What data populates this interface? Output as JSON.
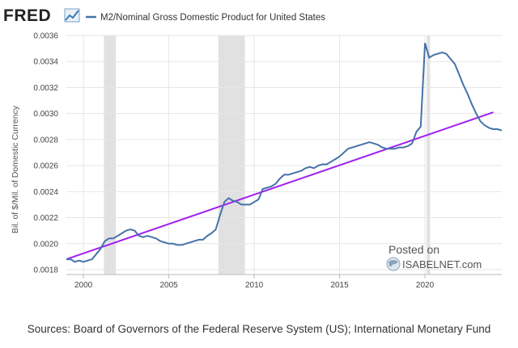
{
  "header": {
    "logo_text": "FRED"
  },
  "watermark": {
    "line1": "Posted on",
    "line2": "ISABELNET.com"
  },
  "sources": "Sources: Board of Governors of the Federal Reserve System (US); International Monetary Fund",
  "colors": {
    "series": "#4572a7",
    "trend": "#a020f0",
    "recession": "#e1e1e1",
    "grid": "#e6e6e6"
  },
  "chart_data": {
    "type": "line",
    "title": "",
    "ylabel": "Bil. of $/Mil. of Domestic Currency",
    "xlabel": "",
    "xlim": [
      1999.0,
      2024.5
    ],
    "ylim": [
      0.0018,
      0.0036
    ],
    "x_ticks": [
      "2000",
      "2005",
      "2010",
      "2015",
      "2020"
    ],
    "y_ticks": [
      "0.0018",
      "0.0020",
      "0.0022",
      "0.0024",
      "0.0026",
      "0.0028",
      "0.0030",
      "0.0032",
      "0.0034",
      "0.0036"
    ],
    "grid": true,
    "legend": "top",
    "recessions": [
      [
        2001.2,
        2001.9
      ],
      [
        2007.9,
        2009.45
      ],
      [
        2020.1,
        2020.3
      ]
    ],
    "series": [
      {
        "name": "M2/Nominal Gross Domestic Product for United States",
        "x": [
          1999.0,
          1999.25,
          1999.5,
          1999.75,
          2000.0,
          2000.25,
          2000.5,
          2000.75,
          2001.0,
          2001.25,
          2001.5,
          2001.75,
          2002.0,
          2002.25,
          2002.5,
          2002.75,
          2003.0,
          2003.25,
          2003.5,
          2003.75,
          2004.0,
          2004.25,
          2004.5,
          2004.75,
          2005.0,
          2005.25,
          2005.5,
          2005.75,
          2006.0,
          2006.25,
          2006.5,
          2006.75,
          2007.0,
          2007.25,
          2007.5,
          2007.75,
          2008.0,
          2008.25,
          2008.5,
          2008.75,
          2009.0,
          2009.25,
          2009.5,
          2009.75,
          2010.0,
          2010.25,
          2010.5,
          2010.75,
          2011.0,
          2011.25,
          2011.5,
          2011.75,
          2012.0,
          2012.25,
          2012.5,
          2012.75,
          2013.0,
          2013.25,
          2013.5,
          2013.75,
          2014.0,
          2014.25,
          2014.5,
          2014.75,
          2015.0,
          2015.25,
          2015.5,
          2015.75,
          2016.0,
          2016.25,
          2016.5,
          2016.75,
          2017.0,
          2017.25,
          2017.5,
          2017.75,
          2018.0,
          2018.25,
          2018.5,
          2018.75,
          2019.0,
          2019.25,
          2019.5,
          2019.75,
          2020.0,
          2020.25,
          2020.5,
          2020.75,
          2021.0,
          2021.25,
          2021.5,
          2021.75,
          2022.0,
          2022.25,
          2022.5,
          2022.75,
          2023.0,
          2023.25,
          2023.5,
          2023.75,
          2024.0,
          2024.25,
          2024.5
        ],
        "values": [
          0.00188,
          0.00188,
          0.00186,
          0.00187,
          0.00186,
          0.00187,
          0.00188,
          0.00192,
          0.00196,
          0.00202,
          0.00204,
          0.00204,
          0.00206,
          0.00208,
          0.0021,
          0.00211,
          0.0021,
          0.00206,
          0.00205,
          0.00206,
          0.00205,
          0.00204,
          0.00202,
          0.00201,
          0.002,
          0.002,
          0.00199,
          0.00199,
          0.002,
          0.00201,
          0.00202,
          0.00203,
          0.00203,
          0.00206,
          0.00208,
          0.00211,
          0.00222,
          0.00232,
          0.00235,
          0.00233,
          0.00232,
          0.0023,
          0.0023,
          0.0023,
          0.00232,
          0.00234,
          0.00242,
          0.00243,
          0.00244,
          0.00246,
          0.0025,
          0.00253,
          0.00253,
          0.00254,
          0.00255,
          0.00256,
          0.00258,
          0.00259,
          0.00258,
          0.0026,
          0.00261,
          0.00261,
          0.00263,
          0.00265,
          0.00267,
          0.0027,
          0.00273,
          0.00274,
          0.00275,
          0.00276,
          0.00277,
          0.00278,
          0.00277,
          0.00276,
          0.00274,
          0.00273,
          0.00273,
          0.00273,
          0.00274,
          0.00274,
          0.00275,
          0.00277,
          0.00286,
          0.0029,
          0.00354,
          0.00343,
          0.00345,
          0.00346,
          0.00347,
          0.00346,
          0.00342,
          0.00338,
          0.0033,
          0.00322,
          0.00315,
          0.00307,
          0.003,
          0.00294,
          0.00291,
          0.00289,
          0.00288,
          0.00288,
          0.00287
        ]
      },
      {
        "x": [
          1999.0,
          2024.0
        ],
        "values": [
          0.00188,
          0.00301
        ]
      }
    ]
  }
}
